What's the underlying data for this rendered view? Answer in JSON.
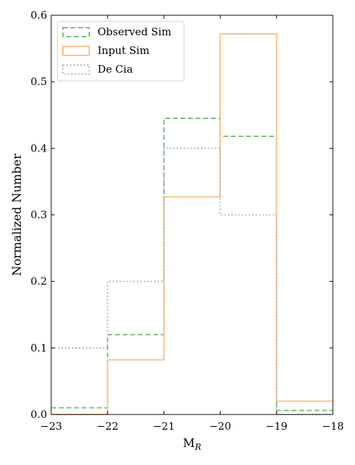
{
  "chart_data": {
    "type": "histogram",
    "xlabel_main": "M",
    "xlabel_sub": "R",
    "ylabel": "Normalized Number",
    "xlim": [
      -23,
      -18
    ],
    "ylim": [
      0,
      0.6
    ],
    "bin_edges": [
      -23,
      -22,
      -21,
      -20,
      -19,
      -18
    ],
    "x_ticks": [
      -23,
      -22,
      -21,
      -20,
      -19,
      -18
    ],
    "x_tick_labels": [
      "−23",
      "−22",
      "−21",
      "−20",
      "−19",
      "−18"
    ],
    "y_ticks": [
      0,
      0.1,
      0.2,
      0.3,
      0.4,
      0.5,
      0.6
    ],
    "y_tick_labels": [
      "0.0",
      "0.1",
      "0.2",
      "0.3",
      "0.4",
      "0.5",
      "0.6"
    ],
    "legend_position": "top-left",
    "series": [
      {
        "name": "Observed Sim",
        "style": "dashed",
        "color": "#66bb66",
        "values": [
          0.01,
          0.12,
          0.445,
          0.418,
          0.006
        ]
      },
      {
        "name": "Input Sim",
        "style": "solid",
        "color": "#ffbb78",
        "values": [
          0.0,
          0.082,
          0.327,
          0.572,
          0.02
        ]
      },
      {
        "name": "De Cia",
        "style": "dotted",
        "color": "#aaaacc",
        "values": [
          0.1,
          0.2,
          0.4,
          0.3,
          0.0
        ]
      }
    ]
  }
}
